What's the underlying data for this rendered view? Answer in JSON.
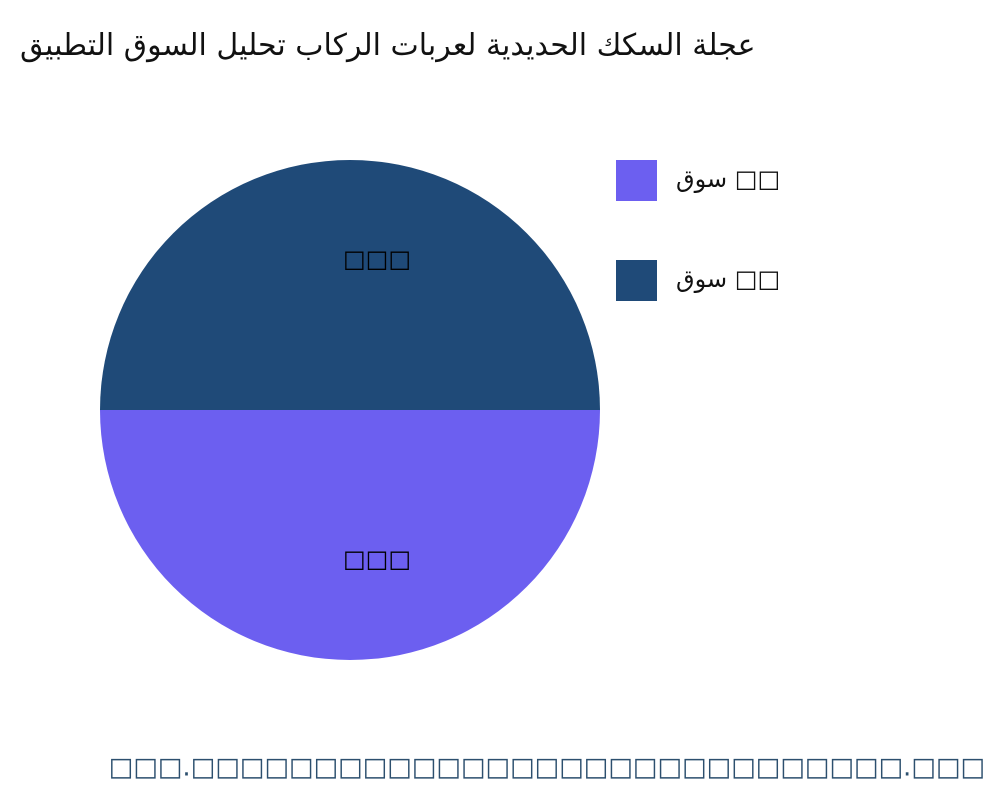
{
  "chart_data": {
    "type": "pie",
    "title": "عجلة السكك الحديدية لعربات الركاب تحليل السوق التطبيق",
    "categories": [
      "سوق □□",
      "سوق □□"
    ],
    "values": [
      50,
      50
    ],
    "value_labels": [
      "□□□",
      "□□□"
    ],
    "colors": [
      "#6c5ff0",
      "#1f4a78"
    ],
    "legend": "right",
    "footer": "□□□.□□□□□□□□□□□□□□□□□□□□□□□□□□□□□.□□□"
  }
}
